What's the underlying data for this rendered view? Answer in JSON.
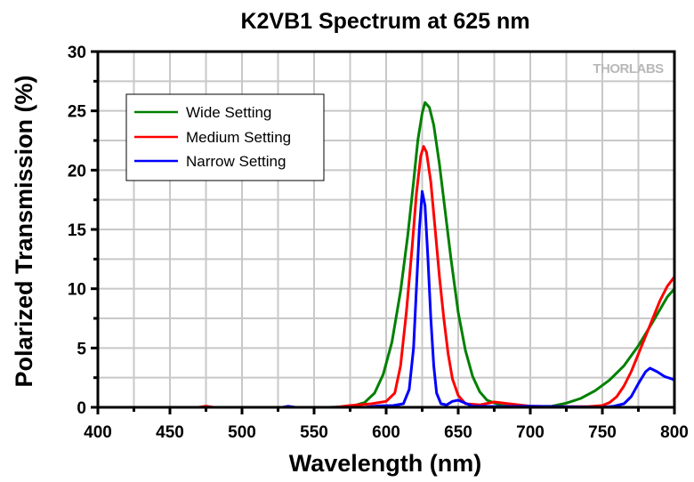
{
  "chart_data": {
    "type": "line",
    "title": "K2VB1 Spectrum at 625 nm",
    "xlabel": "Wavelength (nm)",
    "ylabel": "Polarized Transmission (%)",
    "xlim": [
      400,
      800
    ],
    "ylim": [
      0,
      30
    ],
    "xticks": [
      400,
      450,
      500,
      550,
      600,
      650,
      700,
      750,
      800
    ],
    "yticks": [
      0,
      5,
      10,
      15,
      20,
      25,
      30
    ],
    "x_minor_step": 25,
    "y_minor_step": 2.5,
    "grid": true,
    "legend_position": "top-left",
    "watermark": "THORLABS",
    "series": [
      {
        "name": "Wide Setting",
        "color": "#008000",
        "points": [
          [
            400,
            0
          ],
          [
            560,
            0
          ],
          [
            575,
            0.05
          ],
          [
            585,
            0.4
          ],
          [
            592,
            1.2
          ],
          [
            598,
            2.8
          ],
          [
            604,
            5.5
          ],
          [
            610,
            9.8
          ],
          [
            615,
            14.5
          ],
          [
            619,
            19
          ],
          [
            622,
            22.5
          ],
          [
            625,
            24.8
          ],
          [
            627,
            25.7
          ],
          [
            630,
            25.3
          ],
          [
            633,
            23.8
          ],
          [
            637,
            20.5
          ],
          [
            641,
            16.5
          ],
          [
            645,
            12.5
          ],
          [
            650,
            8
          ],
          [
            655,
            4.8
          ],
          [
            660,
            2.6
          ],
          [
            665,
            1.3
          ],
          [
            670,
            0.6
          ],
          [
            680,
            0.15
          ],
          [
            700,
            0.05
          ],
          [
            715,
            0.1
          ],
          [
            725,
            0.35
          ],
          [
            735,
            0.75
          ],
          [
            745,
            1.4
          ],
          [
            755,
            2.3
          ],
          [
            765,
            3.5
          ],
          [
            775,
            5.2
          ],
          [
            785,
            7.2
          ],
          [
            795,
            9.3
          ],
          [
            800,
            10
          ]
        ]
      },
      {
        "name": "Medium Setting",
        "color": "#ff0000",
        "points": [
          [
            400,
            0
          ],
          [
            470,
            0
          ],
          [
            475,
            0.1
          ],
          [
            480,
            0
          ],
          [
            565,
            0
          ],
          [
            575,
            0.15
          ],
          [
            590,
            0.3
          ],
          [
            600,
            0.5
          ],
          [
            606,
            1.2
          ],
          [
            610,
            3.5
          ],
          [
            614,
            8
          ],
          [
            618,
            13.5
          ],
          [
            621,
            18
          ],
          [
            624,
            21.2
          ],
          [
            626,
            22
          ],
          [
            628,
            21.5
          ],
          [
            631,
            19
          ],
          [
            634,
            15
          ],
          [
            637,
            11
          ],
          [
            640,
            7.5
          ],
          [
            643,
            4.5
          ],
          [
            646,
            2.4
          ],
          [
            650,
            1
          ],
          [
            655,
            0.3
          ],
          [
            665,
            0.2
          ],
          [
            675,
            0.45
          ],
          [
            685,
            0.3
          ],
          [
            700,
            0.1
          ],
          [
            720,
            0.05
          ],
          [
            740,
            0.05
          ],
          [
            750,
            0.15
          ],
          [
            755,
            0.4
          ],
          [
            760,
            0.9
          ],
          [
            765,
            1.8
          ],
          [
            770,
            3
          ],
          [
            775,
            4.5
          ],
          [
            780,
            6
          ],
          [
            785,
            7.5
          ],
          [
            790,
            9
          ],
          [
            795,
            10.2
          ],
          [
            800,
            11
          ]
        ]
      },
      {
        "name": "Narrow Setting",
        "color": "#0000ff",
        "points": [
          [
            400,
            0
          ],
          [
            528,
            0
          ],
          [
            532,
            0.08
          ],
          [
            537,
            0
          ],
          [
            585,
            0
          ],
          [
            595,
            0.12
          ],
          [
            605,
            0.15
          ],
          [
            612,
            0.3
          ],
          [
            616,
            1.5
          ],
          [
            619,
            5
          ],
          [
            621,
            10
          ],
          [
            623,
            15
          ],
          [
            625,
            18.2
          ],
          [
            627,
            17
          ],
          [
            629,
            12.5
          ],
          [
            631,
            7.5
          ],
          [
            633,
            3.5
          ],
          [
            635,
            1.2
          ],
          [
            638,
            0.3
          ],
          [
            642,
            0.2
          ],
          [
            646,
            0.5
          ],
          [
            650,
            0.6
          ],
          [
            654,
            0.4
          ],
          [
            660,
            0.1
          ],
          [
            680,
            0.05
          ],
          [
            700,
            0.1
          ],
          [
            720,
            0.05
          ],
          [
            750,
            0
          ],
          [
            758,
            0.1
          ],
          [
            765,
            0.3
          ],
          [
            770,
            0.9
          ],
          [
            775,
            2
          ],
          [
            780,
            3
          ],
          [
            783,
            3.3
          ],
          [
            788,
            3
          ],
          [
            793,
            2.6
          ],
          [
            798,
            2.4
          ],
          [
            800,
            2.3
          ]
        ]
      }
    ]
  }
}
